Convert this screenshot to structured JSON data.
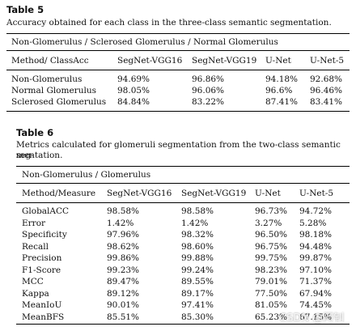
{
  "table5": {
    "title": "Table 5",
    "caption": "Accuracy obtained for each class in the three-class semantic segmentation.",
    "group_header": "Non-Glomerulus / Sclerosed Glomerulus / Normal Glomerulus",
    "columns": [
      "Method/ ClassAcc",
      "SegNet-VGG16",
      "SegNet-VGG19",
      "U-Net",
      "U-Net-5"
    ],
    "rows": [
      [
        "Non-Glomerulus",
        "94.69%",
        "96.86%",
        "94.18%",
        "92.68%"
      ],
      [
        "Normal Glomerulus",
        "98.05%",
        "96.06%",
        "96.6%",
        "96.46%"
      ],
      [
        "Sclerosed Glomerulus",
        "84.84%",
        "83.22%",
        "87.41%",
        "83.41%"
      ]
    ]
  },
  "table6": {
    "title": "Table 6",
    "caption_line1": "Metrics calculated for glomeruli segmentation from the two-class semantic seg-",
    "caption_line2": "mentation.",
    "group_header": "Non-Glomerulus / Glomerulus",
    "columns": [
      "Method/Measure",
      "SegNet-VGG16",
      "SegNet-VGG19",
      "U-Net",
      "U-Net-5"
    ],
    "rows": [
      [
        "GlobalACC",
        "98.58%",
        "98.58%",
        "96.73%",
        "94.72%"
      ],
      [
        "Error",
        "1.42%",
        "1.42%",
        "3.27%",
        "5.28%"
      ],
      [
        "Specificity",
        "97.96%",
        "98.32%",
        "96.50%",
        "98.18%"
      ],
      [
        "Recall",
        "98.62%",
        "98.60%",
        "96.75%",
        "94.48%"
      ],
      [
        "Precision",
        "99.86%",
        "99.88%",
        "99.75%",
        "99.87%"
      ],
      [
        "F1-Score",
        "99.23%",
        "99.24%",
        "98.23%",
        "97.10%"
      ],
      [
        "MCC",
        "89.47%",
        "89.55%",
        "79.01%",
        "71.37%"
      ],
      [
        "Kappa",
        "89.12%",
        "89.17%",
        "77.50%",
        "67.94%"
      ],
      [
        "MeanIoU",
        "90.01%",
        "97.41%",
        "81.05%",
        "74.45%"
      ],
      [
        "MeanBFS",
        "85.51%",
        "85.30%",
        "65.23%",
        "67.15%"
      ]
    ]
  },
  "watermark": "CSDN @阿钊"
}
